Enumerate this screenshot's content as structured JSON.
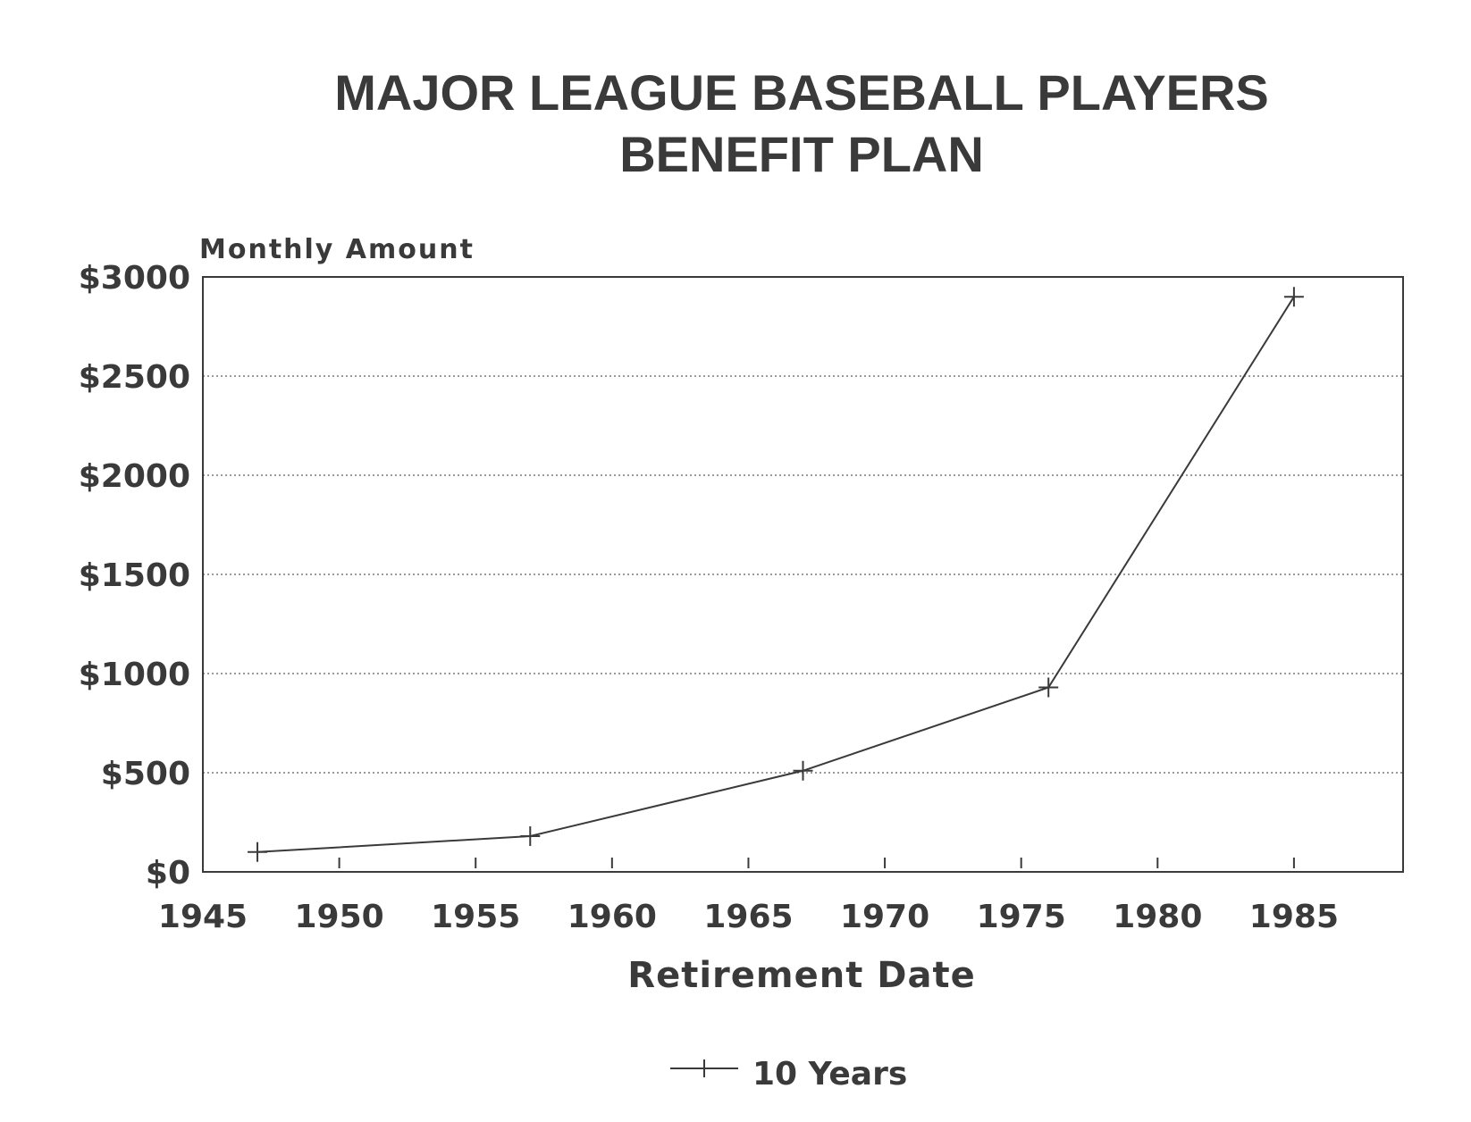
{
  "chart_data": {
    "type": "line",
    "title": [
      "MAJOR LEAGUE BASEBALL PLAYERS",
      "BENEFIT PLAN"
    ],
    "ylabel": "Monthly Amount",
    "xlabel": "Retirement Date",
    "xlim": [
      1945,
      1989
    ],
    "ylim": [
      0,
      3000
    ],
    "x_ticks": [
      1945,
      1950,
      1955,
      1960,
      1965,
      1970,
      1975,
      1980,
      1985
    ],
    "x_tick_labels": [
      "1945",
      "1950",
      "1955",
      "1960",
      "1965",
      "1970",
      "1975",
      "1980",
      "1985"
    ],
    "y_ticks": [
      0,
      500,
      1000,
      1500,
      2000,
      2500,
      3000
    ],
    "y_tick_labels": [
      "$0",
      "$500",
      "$1000",
      "$1500",
      "$2000",
      "$2500",
      "$3000"
    ],
    "grid": "horizontal dotted",
    "legend_position": "bottom",
    "series": [
      {
        "name": "10 Years",
        "marker": "plus",
        "color": "#3a3a3a",
        "x": [
          1947,
          1957,
          1967,
          1976,
          1985
        ],
        "y": [
          100,
          180,
          510,
          930,
          2900
        ]
      }
    ]
  }
}
